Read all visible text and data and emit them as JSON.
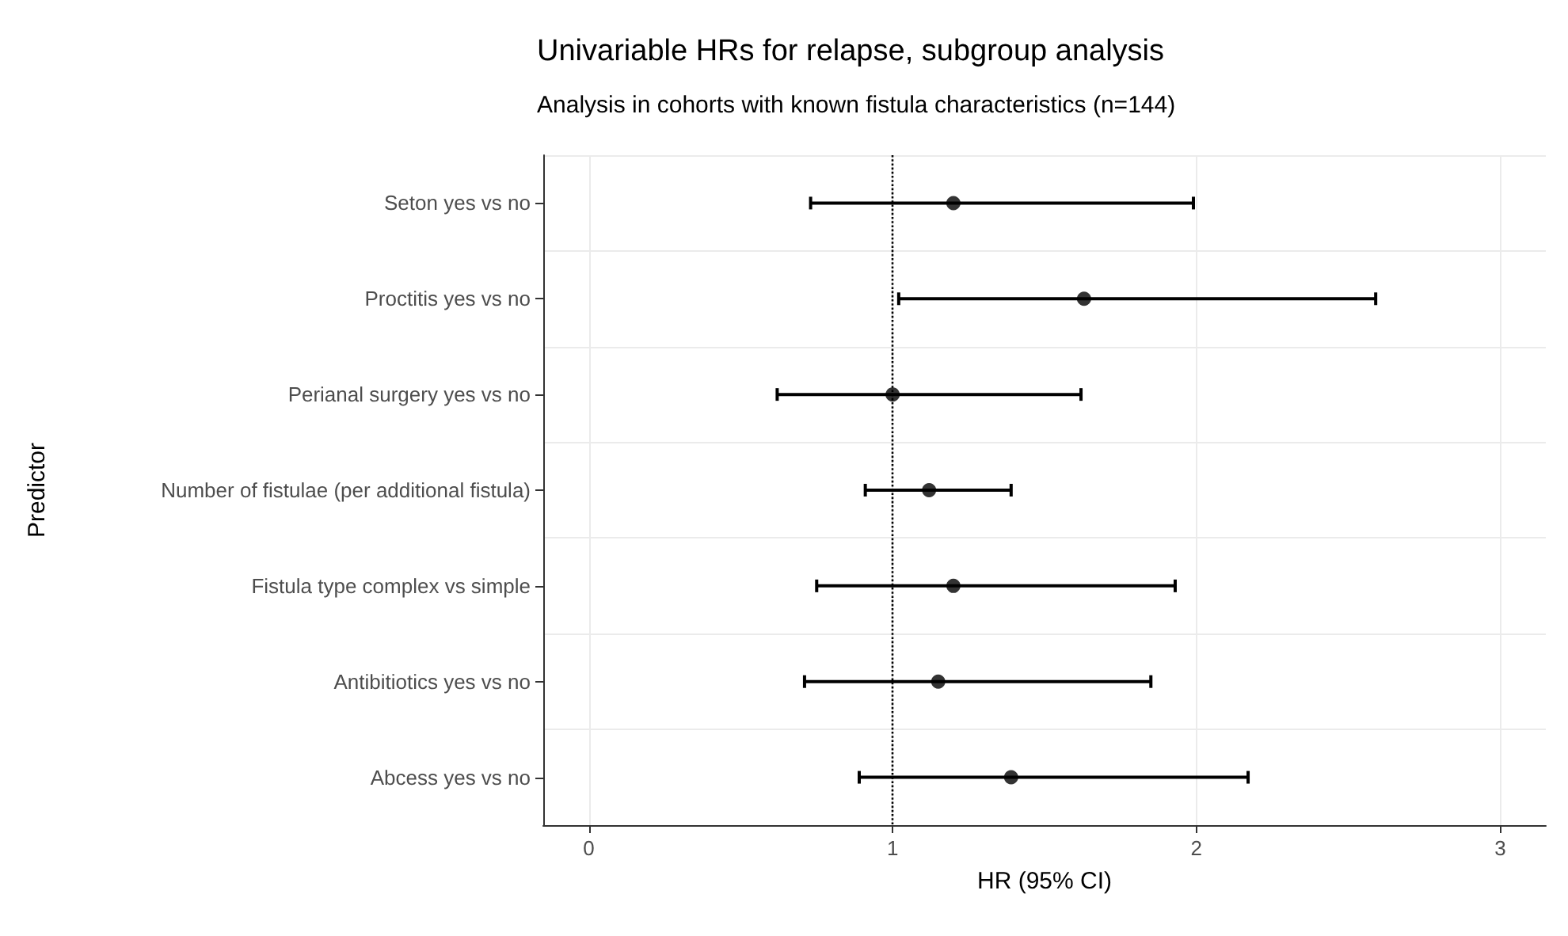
{
  "chart_data": {
    "type": "scatter",
    "orientation": "horizontal",
    "title": "Univariable HRs for relapse, subgroup analysis",
    "subtitle": "Analysis in cohorts with known fistula characteristics (n=144)",
    "xlabel": "HR (95% CI)",
    "ylabel": "Predictor",
    "categories": [
      "Seton yes vs no",
      "Proctitis yes vs no",
      "Perianal surgery yes vs no",
      "Number of fistulae (per additional fistula)",
      "Fistula type complex vs simple",
      "Antibitiotics yes vs no",
      "Abcess yes vs no"
    ],
    "values": [
      1.2,
      1.63,
      1.0,
      1.12,
      1.2,
      1.15,
      1.39
    ],
    "errors": [
      [
        0.73,
        1.99
      ],
      [
        1.02,
        2.59
      ],
      [
        0.62,
        1.62
      ],
      [
        0.91,
        1.39
      ],
      [
        0.75,
        1.93
      ],
      [
        0.71,
        1.85
      ],
      [
        0.89,
        2.17
      ]
    ],
    "color": "#000000",
    "marker": "circle",
    "xlim": [
      -0.15,
      3.15
    ],
    "xticks": [
      0,
      1,
      2,
      3
    ],
    "grid": true,
    "ref_lines": [
      {
        "axis": "x",
        "value": 1,
        "line_style": "dotted",
        "color": "#000000"
      }
    ]
  }
}
